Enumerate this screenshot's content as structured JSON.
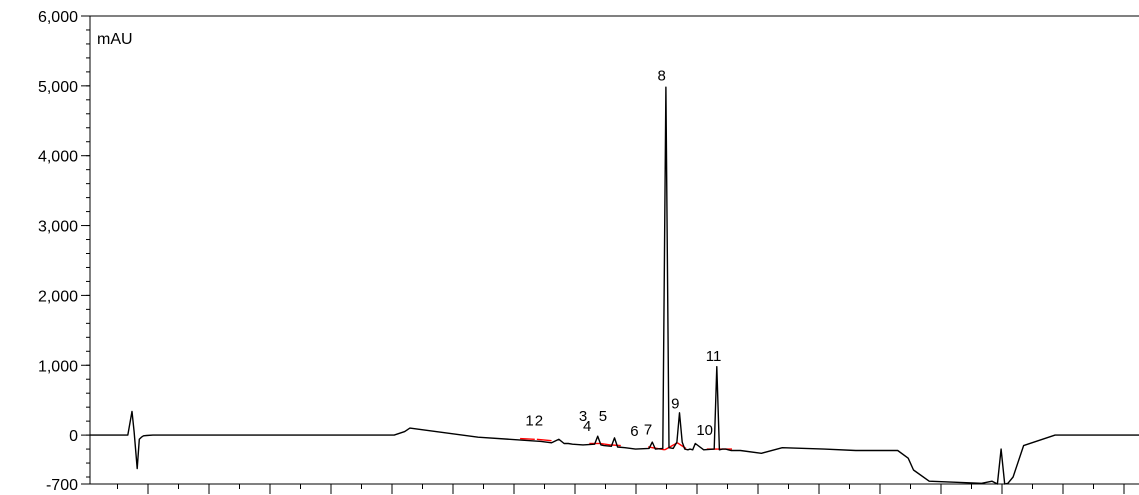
{
  "chart_data": {
    "type": "line",
    "title": "",
    "xlabel": "",
    "ylabel": "mAU",
    "unit_label": "mAU",
    "ylim": [
      -700,
      6000
    ],
    "xlim": [
      0,
      1
    ],
    "y_ticks": [
      {
        "value": 6000,
        "label": "6,000"
      },
      {
        "value": 5000,
        "label": "5,000"
      },
      {
        "value": 4000,
        "label": "4,000"
      },
      {
        "value": 3000,
        "label": "3,000"
      },
      {
        "value": 2000,
        "label": "2,000"
      },
      {
        "value": 1000,
        "label": "1,000"
      },
      {
        "value": 0,
        "label": "0"
      },
      {
        "value": -700,
        "label": "-700"
      }
    ],
    "grid": false,
    "series": [
      {
        "x": [
          0,
          0.028,
          0.036,
          0.04,
          0.042,
          0.045,
          0.047,
          0.049,
          0.051,
          0.054,
          0.06,
          0.1,
          0.2,
          0.25,
          0.29,
          0.3,
          0.305,
          0.32,
          0.37,
          0.43,
          0.44,
          0.447,
          0.452,
          0.456,
          0.46,
          0.47,
          0.481,
          0.484,
          0.487,
          0.49,
          0.497,
          0.5,
          0.503,
          0.51,
          0.52,
          0.533,
          0.536,
          0.539,
          0.546,
          0.549,
          0.552,
          0.556,
          0.5595,
          0.562,
          0.5645,
          0.567,
          0.57,
          0.572,
          0.5745,
          0.577,
          0.585,
          0.595,
          0.5975,
          0.6,
          0.603,
          0.606,
          0.6085,
          0.611,
          0.614,
          0.62,
          0.64,
          0.66,
          0.7,
          0.73,
          0.77,
          0.78,
          0.785,
          0.8,
          0.85,
          0.86,
          0.865,
          0.8685,
          0.872,
          0.875,
          0.88,
          0.89,
          0.92,
          0.95,
          1.0
        ],
        "values": [
          0,
          0,
          0,
          340,
          50,
          -480,
          -60,
          -30,
          -10,
          -5,
          0,
          0,
          0,
          0,
          0,
          50,
          100,
          70,
          -30,
          -90,
          -110,
          -60,
          -120,
          -120,
          -130,
          -140,
          -130,
          -15,
          -140,
          -150,
          -160,
          -40,
          -170,
          -180,
          -200,
          -190,
          -100,
          -200,
          -190,
          4980,
          -180,
          -190,
          -100,
          320,
          -100,
          -200,
          -210,
          -200,
          -210,
          -120,
          -210,
          -200,
          980,
          -210,
          -200,
          -200,
          -210,
          -220,
          -220,
          -220,
          -260,
          -180,
          -200,
          -220,
          -220,
          -330,
          -500,
          -660,
          -690,
          -660,
          -700,
          -200,
          -700,
          -690,
          -600,
          -150,
          0,
          0,
          0
        ]
      }
    ],
    "peaks": [
      {
        "label": "1"
      },
      {
        "label": "2"
      },
      {
        "label": "3"
      },
      {
        "label": "4"
      },
      {
        "label": "5"
      },
      {
        "label": "6"
      },
      {
        "label": "7"
      },
      {
        "label": "8"
      },
      {
        "label": "9"
      },
      {
        "label": "10"
      },
      {
        "label": "11"
      }
    ],
    "baseline_color": "#ff0000",
    "trace_color": "#000000"
  }
}
